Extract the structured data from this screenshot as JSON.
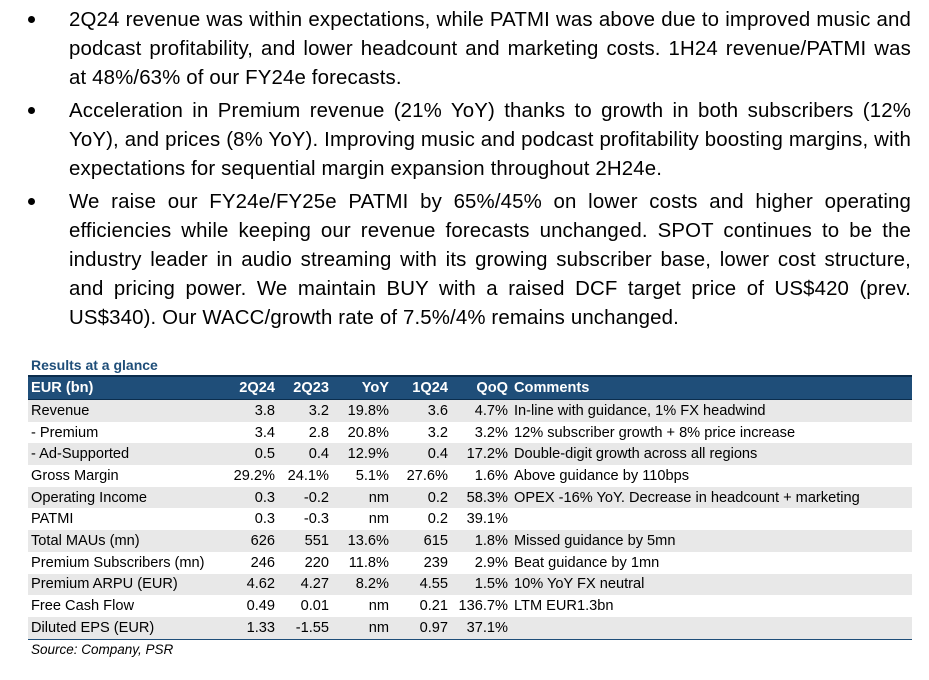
{
  "bullets": [
    "2Q24 revenue was within expectations, while PATMI was above due to improved music and podcast profitability, and lower headcount and marketing costs. 1H24 revenue/PATMI was at 48%/63% of our FY24e forecasts.",
    "Acceleration in Premium revenue (21% YoY) thanks to growth in both subscribers (12% YoY), and prices (8% YoY). Improving music and podcast profitability boosting margins, with expectations for sequential margin expansion throughout 2H24e.",
    "We raise our FY24e/FY25e PATMI by 65%/45% on lower costs and higher operating efficiencies while keeping our revenue forecasts unchanged. SPOT continues to be the industry leader in audio streaming with its growing subscriber base, lower cost structure, and pricing power. We maintain BUY with a raised DCF target price of US$420 (prev. US$340). Our WACC/growth rate of 7.5%/4% remains unchanged."
  ],
  "table": {
    "title": "Results at a glance",
    "headers": [
      "EUR (bn)",
      "2Q24",
      "2Q23",
      "YoY",
      "1Q24",
      "QoQ",
      "Comments"
    ],
    "rows": [
      [
        "Revenue",
        "3.8",
        "3.2",
        "19.8%",
        "3.6",
        "4.7%",
        "In-line with guidance, 1% FX headwind"
      ],
      [
        " - Premium",
        "3.4",
        "2.8",
        "20.8%",
        "3.2",
        "3.2%",
        "12% subscriber growth + 8% price increase"
      ],
      [
        " - Ad-Supported",
        "0.5",
        "0.4",
        "12.9%",
        "0.4",
        "17.2%",
        "Double-digit growth across all regions"
      ],
      [
        "Gross Margin",
        "29.2%",
        "24.1%",
        "5.1%",
        "27.6%",
        "1.6%",
        "Above guidance by 110bps"
      ],
      [
        "Operating Income",
        "0.3",
        "-0.2",
        "nm",
        "0.2",
        "58.3%",
        "OPEX -16% YoY. Decrease in headcount + marketing"
      ],
      [
        "PATMI",
        "0.3",
        "-0.3",
        "nm",
        "0.2",
        "39.1%",
        ""
      ],
      [
        "Total MAUs (mn)",
        "626",
        "551",
        "13.6%",
        "615",
        "1.8%",
        "Missed guidance by 5mn"
      ],
      [
        "Premium Subscribers (mn)",
        "246",
        "220",
        "11.8%",
        "239",
        "2.9%",
        "Beat guidance by 1mn"
      ],
      [
        "Premium ARPU (EUR)",
        "4.62",
        "4.27",
        "8.2%",
        "4.55",
        "1.5%",
        "10% YoY FX neutral"
      ],
      [
        "Free Cash Flow",
        "0.49",
        "0.01",
        "nm",
        "0.21",
        "136.7%",
        "LTM EUR1.3bn"
      ],
      [
        "Diluted EPS (EUR)",
        "1.33",
        "-1.55",
        "nm",
        "0.97",
        "37.1%",
        ""
      ]
    ],
    "source": "Source: Company, PSR"
  }
}
